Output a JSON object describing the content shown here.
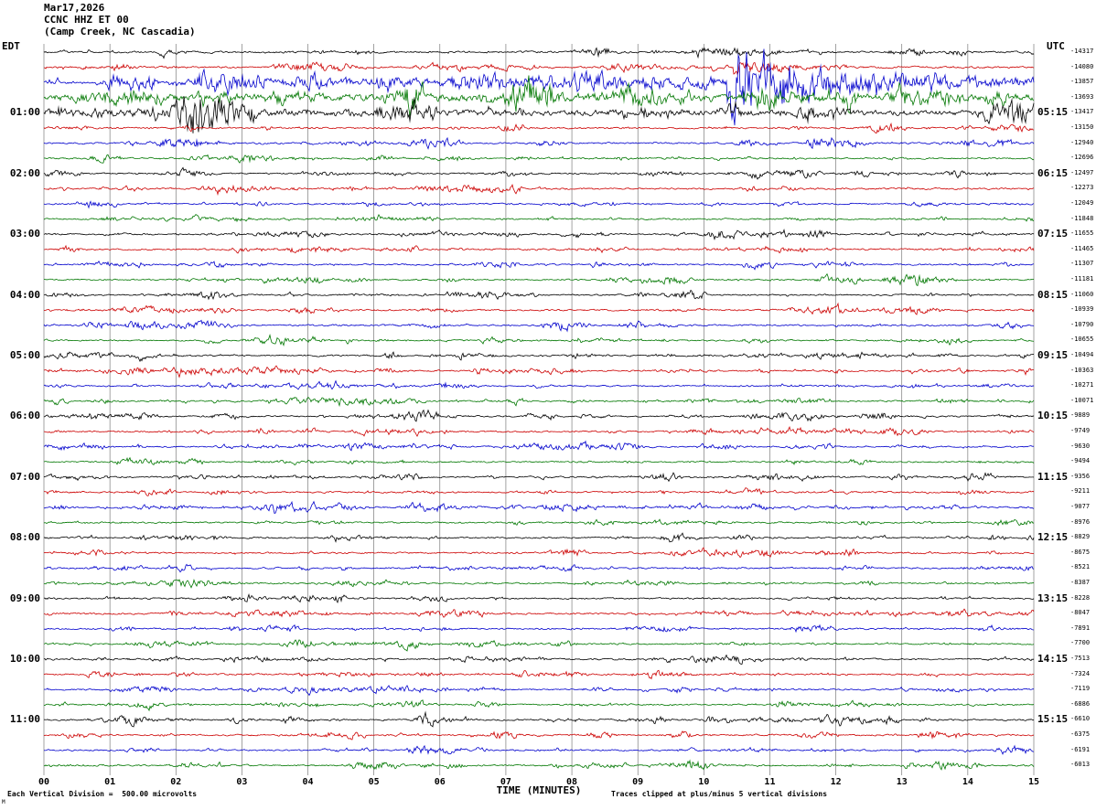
{
  "header": {
    "date": "Mar17,2026",
    "station": "CCNC HHZ ET 00",
    "location": "(Camp Creek, NC Cascadia)"
  },
  "axes": {
    "left_tz": "EDT",
    "right_tz": "UTC",
    "xlabel": "TIME (MINUTES)",
    "x_ticks": [
      "00",
      "01",
      "02",
      "03",
      "04",
      "05",
      "06",
      "07",
      "08",
      "09",
      "10",
      "11",
      "12",
      "13",
      "14",
      "15"
    ]
  },
  "footer": {
    "left": "Each Vertical Division =  500.00 microvolts",
    "right": "Traces clipped at plus/minus 5 vertical divisions",
    "corner": "M"
  },
  "colors": {
    "trace_cycle": [
      "#000000",
      "#cc0000",
      "#0000cc",
      "#007700"
    ],
    "grid": "#666666",
    "text": "#000000"
  },
  "chart_data": {
    "type": "line",
    "subtype": "helicorder-seismogram",
    "title": "CCNC HHZ ET 00 (Camp Creek, NC Cascadia) Mar17,2026",
    "x_range_minutes": [
      0,
      15
    ],
    "minutes_per_row": 15,
    "rows_total": 48,
    "left_time_zone": "EDT",
    "right_time_zone": "UTC",
    "volts_per_division": 500.0,
    "clip_divisions": 5,
    "defaults": {
      "amp": 2.3,
      "act": 1.0
    },
    "note": "Traces are continuous seismic background noise with tremor spindles; a large clipped event appears on the blue 00:30 EDT row near minutes 10.4-12. 'val' is the offset count printed at the right edge of each row; amp/act/ev are envelope parameters (pixels, minutes) used to regenerate the waveform appearance.",
    "rows": [
      {
        "c": 0,
        "val": -14317,
        "amp": 3.0,
        "act": 1.1
      },
      {
        "c": 1,
        "val": -14080,
        "amp": 2.8,
        "ev": [
          {
            "t": 10.45,
            "d": 0.5,
            "a": 22
          }
        ]
      },
      {
        "c": 2,
        "val": -13857,
        "amp": 4.0,
        "act": 1.1,
        "ev": [
          {
            "t": 2.6,
            "d": 25,
            "a": 8
          },
          {
            "t": 10.35,
            "d": 1.4,
            "a": 78
          }
        ]
      },
      {
        "c": 3,
        "val": -13693,
        "amp": 6.5,
        "act": 1.2,
        "ev": [
          {
            "t": 0,
            "d": 40,
            "a": 4
          },
          {
            "t": 10.6,
            "d": 0.8,
            "a": 16
          }
        ]
      },
      {
        "c": 0,
        "edt": "01:00",
        "utc": "05:15",
        "val": -13417,
        "amp": 6.0,
        "act": 1.1,
        "ev": [
          {
            "t": 0,
            "d": 9,
            "a": 5
          }
        ]
      },
      {
        "c": 1,
        "val": -13150,
        "amp": 2.6
      },
      {
        "c": 2,
        "val": -12940,
        "amp": 2.4,
        "ev": [
          {
            "t": 11.55,
            "d": 0.35,
            "a": 18
          }
        ]
      },
      {
        "c": 3,
        "val": -12696,
        "amp": 2.4
      },
      {
        "c": 0,
        "edt": "02:00",
        "utc": "06:15",
        "val": -12497,
        "amp": 2.4
      },
      {
        "c": 1,
        "val": -12273,
        "amp": 2.5
      },
      {
        "c": 2,
        "val": -12049,
        "amp": 2.3
      },
      {
        "c": 3,
        "val": -11848,
        "amp": 2.4
      },
      {
        "c": 0,
        "edt": "03:00",
        "utc": "07:15",
        "val": -11655,
        "amp": 2.4
      },
      {
        "c": 1,
        "val": -11465,
        "amp": 2.5
      },
      {
        "c": 2,
        "val": -11307,
        "amp": 2.3
      },
      {
        "c": 3,
        "val": -11181,
        "amp": 2.3
      },
      {
        "c": 0,
        "edt": "04:00",
        "utc": "08:15",
        "val": -11060,
        "amp": 2.3
      },
      {
        "c": 1,
        "val": -10939,
        "amp": 2.4
      },
      {
        "c": 2,
        "val": -10790,
        "amp": 2.4
      },
      {
        "c": 3,
        "val": -10655,
        "amp": 2.3
      },
      {
        "c": 0,
        "edt": "05:00",
        "utc": "09:15",
        "val": -10494,
        "amp": 2.4
      },
      {
        "c": 1,
        "val": -10363,
        "amp": 2.4
      },
      {
        "c": 2,
        "val": -10271,
        "amp": 2.3
      },
      {
        "c": 3,
        "val": -10071,
        "amp": 2.3
      },
      {
        "c": 0,
        "edt": "06:00",
        "utc": "10:15",
        "val": -9889,
        "amp": 2.4
      },
      {
        "c": 1,
        "val": -9749,
        "amp": 2.5
      },
      {
        "c": 2,
        "val": -9630,
        "amp": 2.3
      },
      {
        "c": 3,
        "val": -9494,
        "amp": 2.3
      },
      {
        "c": 0,
        "edt": "07:00",
        "utc": "11:15",
        "val": -9356,
        "amp": 2.4
      },
      {
        "c": 1,
        "val": -9211,
        "amp": 2.5
      },
      {
        "c": 2,
        "val": -9077,
        "amp": 2.4
      },
      {
        "c": 3,
        "val": -8976,
        "amp": 2.3
      },
      {
        "c": 0,
        "edt": "08:00",
        "utc": "12:15",
        "val": -8829,
        "amp": 2.4
      },
      {
        "c": 1,
        "val": -8675,
        "amp": 2.4
      },
      {
        "c": 2,
        "val": -8521,
        "amp": 2.4
      },
      {
        "c": 3,
        "val": -8387,
        "amp": 2.3
      },
      {
        "c": 0,
        "edt": "09:00",
        "utc": "13:15",
        "val": -8228,
        "amp": 2.4
      },
      {
        "c": 1,
        "val": -8047,
        "amp": 2.6
      },
      {
        "c": 2,
        "val": -7891,
        "amp": 2.4
      },
      {
        "c": 3,
        "val": -7700,
        "amp": 2.3
      },
      {
        "c": 0,
        "edt": "10:00",
        "utc": "14:15",
        "val": -7513,
        "amp": 2.4
      },
      {
        "c": 1,
        "val": -7324,
        "amp": 2.4
      },
      {
        "c": 2,
        "val": -7119,
        "amp": 2.4
      },
      {
        "c": 3,
        "val": -6886,
        "amp": 2.3
      },
      {
        "c": 0,
        "edt": "11:00",
        "utc": "15:15",
        "val": -6610,
        "amp": 2.4
      },
      {
        "c": 1,
        "val": -6375,
        "amp": 2.5
      },
      {
        "c": 2,
        "val": -6191,
        "amp": 2.3
      },
      {
        "c": 3,
        "val": -6013,
        "amp": 2.3
      }
    ]
  }
}
